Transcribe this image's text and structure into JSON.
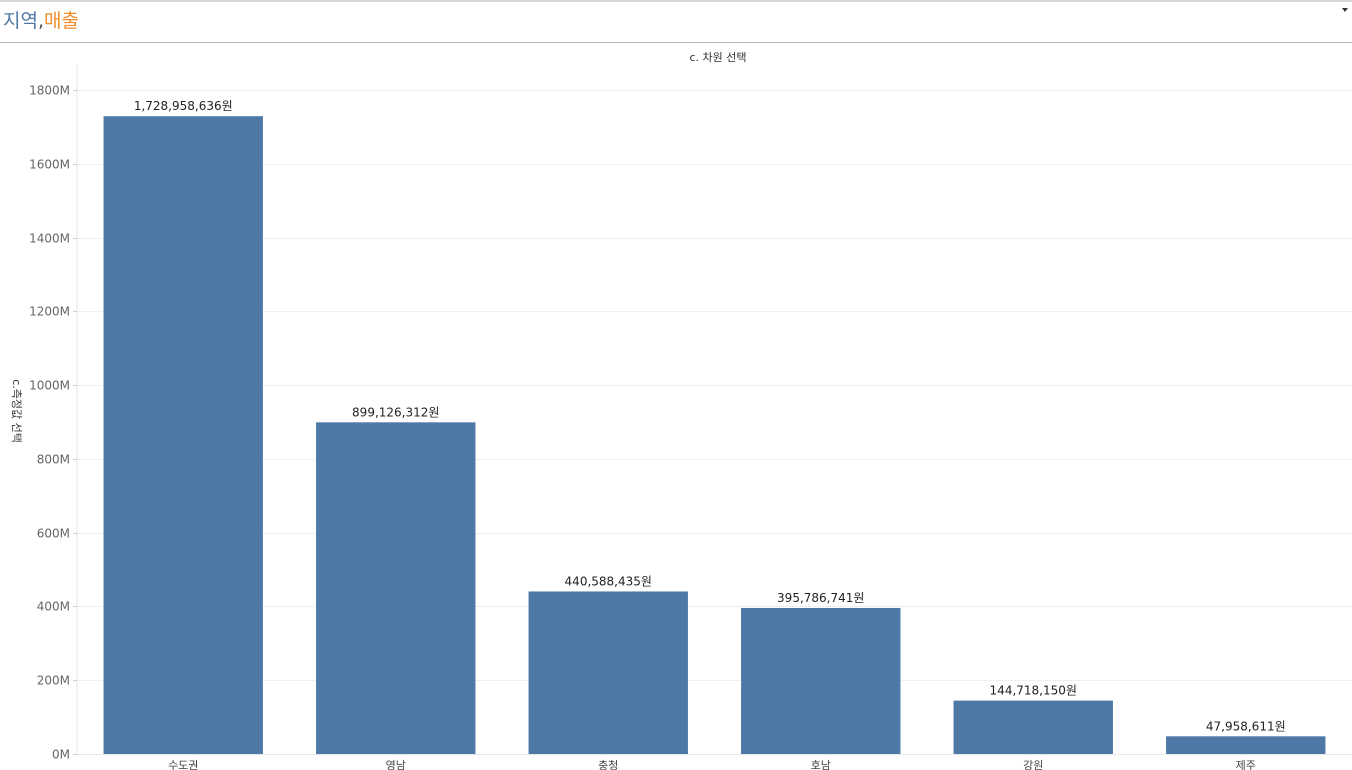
{
  "sheet": {
    "title_part1": "지역",
    "title_sep": ",",
    "title_part2": "매출",
    "title_colors": {
      "part1": "#4e79a7",
      "part2": "#f28e2b"
    },
    "menu_icon": "chevron-down-icon"
  },
  "chart_data": {
    "type": "bar",
    "title": "c. 차원 선택",
    "xlabel": "",
    "ylabel": "c.측정값 선택",
    "categories": [
      "수도권",
      "영남",
      "충청",
      "호남",
      "강원",
      "제주"
    ],
    "values": [
      1728958636,
      899126312,
      440588435,
      395786741,
      144718150,
      47958611
    ],
    "data_labels": [
      "1,728,958,636원",
      "899,126,312원",
      "440,588,435원",
      "395,786,741원",
      "144,718,150원",
      "47,958,611원"
    ],
    "ylim": [
      0,
      1800000000
    ],
    "yticks": [
      0,
      200000000,
      400000000,
      600000000,
      800000000,
      1000000000,
      1200000000,
      1400000000,
      1600000000,
      1800000000
    ],
    "ytick_labels": [
      "0M",
      "200M",
      "400M",
      "600M",
      "800M",
      "1000M",
      "1200M",
      "1400M",
      "1600M",
      "1800M"
    ],
    "bar_color": "#4e79a7",
    "grid": true,
    "legend": "none"
  }
}
